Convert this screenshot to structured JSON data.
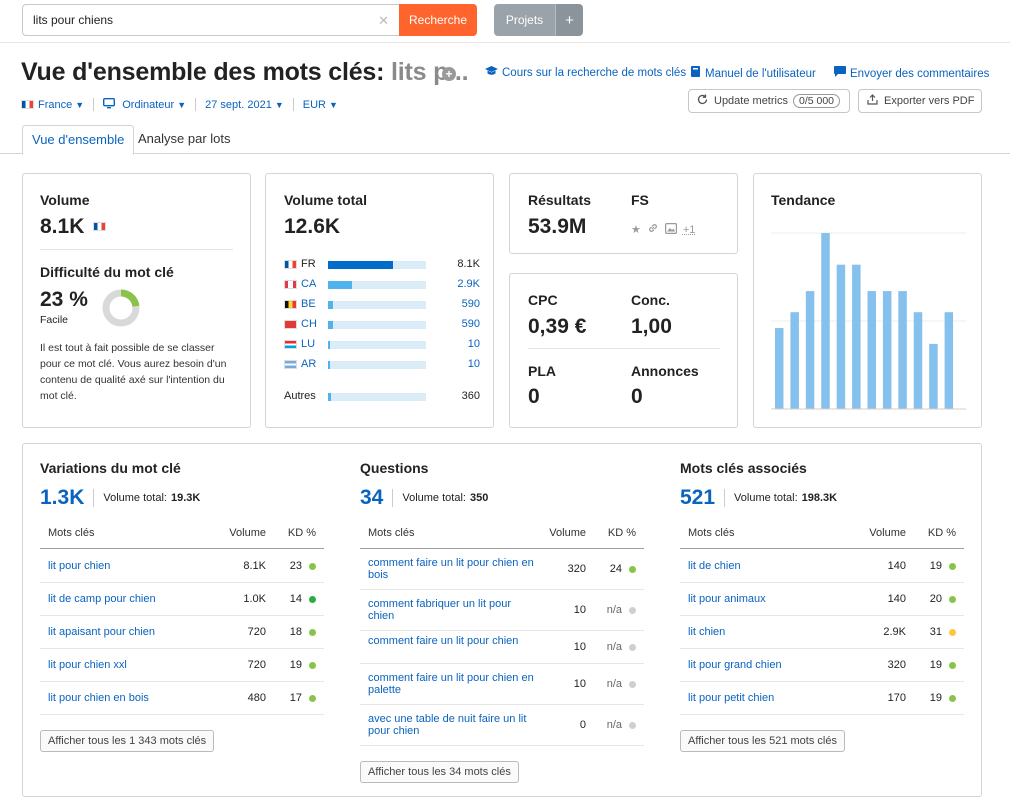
{
  "search": {
    "value": "lits pour chiens",
    "button": "Recherche",
    "projects": "Projets",
    "projects_plus": "+"
  },
  "header": {
    "title_prefix": "Vue d'ensemble des mots clés:",
    "title_keyword": "lits p...",
    "links": {
      "course": "Cours sur la recherche de mots clés",
      "manual": "Manuel de l'utilisateur",
      "feedback": "Envoyer des commentaires"
    },
    "filters": {
      "country": "France",
      "device": "Ordinateur",
      "date": "27 sept. 2021",
      "currency": "EUR"
    },
    "update_button": "Update metrics",
    "update_count": "0/5 000",
    "export_button": "Exporter vers PDF"
  },
  "tabs": {
    "overview": "Vue d'ensemble",
    "batch": "Analyse par lots"
  },
  "volume_card": {
    "title": "Volume",
    "value": "8.1K",
    "difficulty_title": "Difficulté du mot clé",
    "difficulty_value": "23 %",
    "difficulty_pct": 23,
    "difficulty_label": "Facile",
    "difficulty_text": "Il est tout à fait possible de se classer pour ce mot clé. Vous aurez besoin d'un contenu de qualité axé sur l'intention du mot clé."
  },
  "total_card": {
    "title": "Volume total",
    "value": "12.6K",
    "countries": [
      {
        "code": "FR",
        "value": "8.1K",
        "fraction": 0.66,
        "link": false
      },
      {
        "code": "CA",
        "value": "2.9K",
        "fraction": 0.24,
        "link": true
      },
      {
        "code": "BE",
        "value": "590",
        "fraction": 0.05,
        "link": true
      },
      {
        "code": "CH",
        "value": "590",
        "fraction": 0.05,
        "link": true
      },
      {
        "code": "LU",
        "value": "10",
        "fraction": 0.01,
        "link": true
      },
      {
        "code": "AR",
        "value": "10",
        "fraction": 0.01,
        "link": true
      }
    ],
    "others_label": "Autres",
    "others_value": "360",
    "others_fraction": 0.03
  },
  "results_card": {
    "results_label": "Résultats",
    "results_value": "53.9M",
    "fs_label": "FS",
    "fs_more": "+1"
  },
  "cpc_card": {
    "cpc_label": "CPC",
    "cpc_value": "0,39 €",
    "conc_label": "Conc.",
    "conc_value": "1,00",
    "pla_label": "PLA",
    "pla_value": "0",
    "ads_label": "Annonces",
    "ads_value": "0"
  },
  "trend_card": {
    "title": "Tendance",
    "values": [
      0.46,
      0.55,
      0.67,
      1.0,
      0.82,
      0.82,
      0.67,
      0.67,
      0.67,
      0.55,
      0.37,
      0.55
    ]
  },
  "table_headers": {
    "keywords": "Mots clés",
    "volume": "Volume",
    "kd": "KD %"
  },
  "variations": {
    "title": "Variations du mot clé",
    "count": "1.3K",
    "total_label": "Volume total:",
    "total_value": "19.3K",
    "rows": [
      {
        "kw": "lit pour chien",
        "vol": "8.1K",
        "kd": "23",
        "color": "#8bc34a"
      },
      {
        "kw": "lit de camp pour chien",
        "vol": "1.0K",
        "kd": "14",
        "color": "#2eaa3f"
      },
      {
        "kw": "lit apaisant pour chien",
        "vol": "720",
        "kd": "18",
        "color": "#8bc34a"
      },
      {
        "kw": "lit pour chien xxl",
        "vol": "720",
        "kd": "19",
        "color": "#8bc34a"
      },
      {
        "kw": "lit pour chien en bois",
        "vol": "480",
        "kd": "17",
        "color": "#8bc34a"
      }
    ],
    "show_all": "Afficher tous les 1 343 mots clés"
  },
  "questions": {
    "title": "Questions",
    "count": "34",
    "total_label": "Volume total:",
    "total_value": "350",
    "rows": [
      {
        "kw": "comment faire un lit pour chien en bois",
        "vol": "320",
        "kd": "24",
        "color": "#8bc34a"
      },
      {
        "kw": "comment fabriquer un lit pour chien",
        "vol": "10",
        "kd": "n/a",
        "color": "#cfcfcf"
      },
      {
        "kw": "comment faire un lit pour chien",
        "vol": "10",
        "kd": "n/a",
        "color": "#cfcfcf"
      },
      {
        "kw": "comment faire un lit pour chien en palette",
        "vol": "10",
        "kd": "n/a",
        "color": "#cfcfcf"
      },
      {
        "kw": "avec une table de nuit faire un lit pour chien",
        "vol": "0",
        "kd": "n/a",
        "color": "#cfcfcf"
      }
    ],
    "show_all": "Afficher tous les 34 mots clés"
  },
  "related": {
    "title": "Mots clés associés",
    "count": "521",
    "total_label": "Volume total:",
    "total_value": "198.3K",
    "rows": [
      {
        "kw": "lit de chien",
        "vol": "140",
        "kd": "19",
        "color": "#8bc34a"
      },
      {
        "kw": "lit pour animaux",
        "vol": "140",
        "kd": "20",
        "color": "#8bc34a"
      },
      {
        "kw": "lit chien",
        "vol": "2.9K",
        "kd": "31",
        "color": "#ffc53d"
      },
      {
        "kw": "lit pour grand chien",
        "vol": "320",
        "kd": "19",
        "color": "#8bc34a"
      },
      {
        "kw": "lit pour petit chien",
        "vol": "170",
        "kd": "19",
        "color": "#8bc34a"
      }
    ],
    "show_all": "Afficher tous les 521 mots clés"
  }
}
